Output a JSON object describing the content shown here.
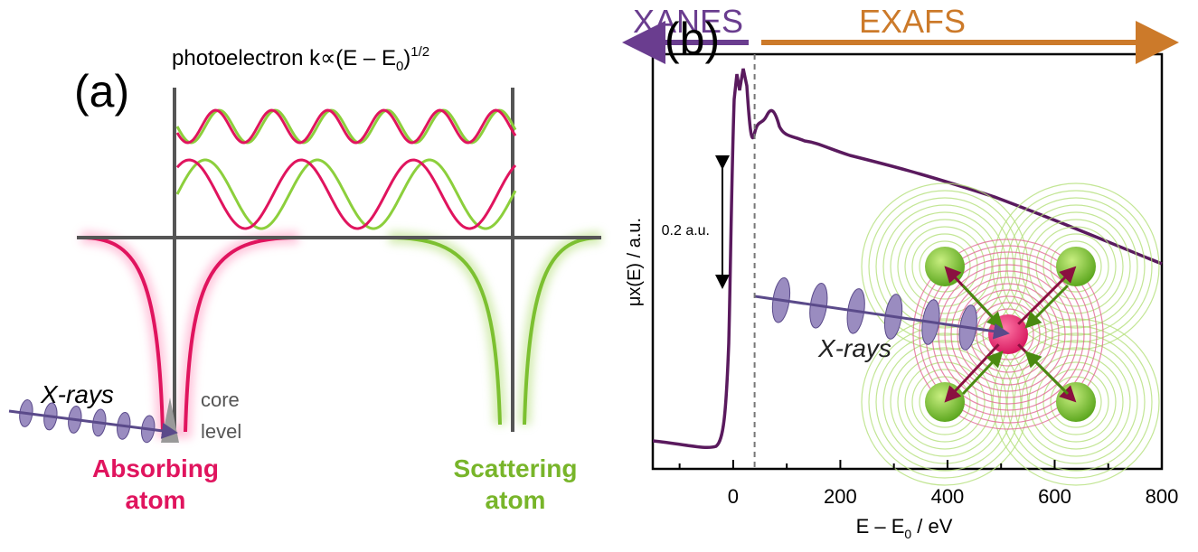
{
  "panel_a": {
    "label": "(a)",
    "wave_label": {
      "main": "photoelectron k∝(E – E",
      "sub": "0",
      "close": ")",
      "sup": "1/2"
    },
    "xrays_label": "X-rays",
    "core_label": [
      "core",
      "level"
    ],
    "absorbing_label": [
      "Absorbing",
      "atom"
    ],
    "scattering_label": [
      "Scattering",
      "atom"
    ]
  },
  "panel_b": {
    "label": "(b)",
    "xanes_label": "XANES",
    "exafs_label": "EXAFS",
    "scale_bar_label": "0.2 a.u.",
    "y_label": "μx(E) / a.u.",
    "x_label": {
      "main": "E – E",
      "sub": "0",
      "rest": " / eV"
    },
    "xrays_label": "X-rays",
    "xlim": [
      -150,
      800
    ],
    "xticks": [
      0,
      200,
      400,
      600,
      800
    ],
    "x_minor_ticks": [
      -100,
      100,
      300,
      500,
      700
    ],
    "boundary": 40
  }
}
